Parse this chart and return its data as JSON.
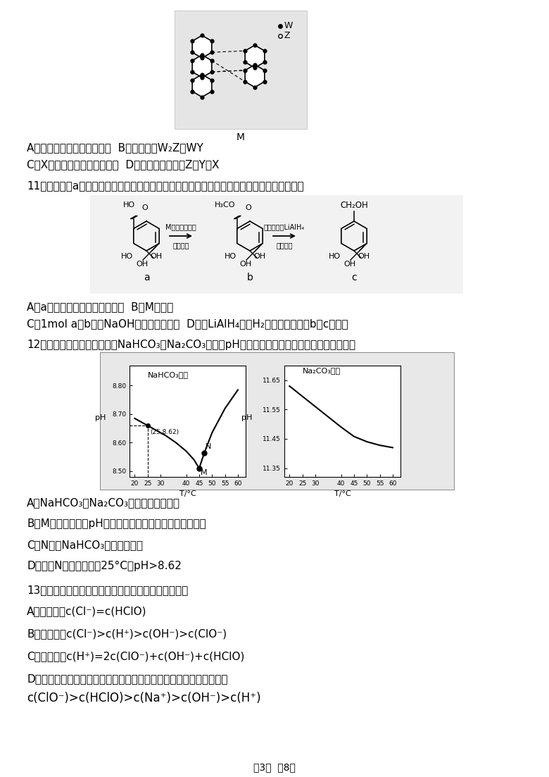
{
  "page_bg": "#ffffff",
  "footer": "第3页  共8页",
  "q10_A": "A．氢键是一种特殊的化学键  B．稳定性：W",
  "q10_A2": "Z＞WY",
  "q10_C": "C．X的氧化物的水化物是强碱  D．简单离子半径：Z＞Y＞X",
  "q11_title": "11．莽草酸（a）是抗病毒和抗癌药物中间体，其官能团修饰过程如图所示，下列说法正确的是",
  "q11_A": "A．a分子中所有碳原子可能共面  B．M为乙醇",
  "q11_C": "C．1mol a或b消耗NaOH的物质的量相等  D．将LiAlH",
  "q11_C2": "改为H",
  "q11_C3": "，也可以完成由b向c的转化",
  "q12_title": "12．实验测得等物质的量浓度NaHCO",
  "q12_title2": "和Na",
  "q12_title3": "CO",
  "q12_title4": "溶液的pH随温度变化如图所示，下列说法错误的是",
  "q12_A": "A．NaHCO",
  "q12_A2": "和Na",
  "q12_A3": "CO",
  "q12_A4": "水解均是吸热反应",
  "q12_B": "B．M点之前，升温pH减小，主要原因是升温促进水的电离",
  "q12_C": "C．N点时NaHCO",
  "q12_C2": "已经完全分解",
  "q12_D": "D．若将N点溶液恢复到25°C，pH>8.62",
  "q13_title": "13．氯水具有漂白和杀菌作用．下列浓度关系正确的是",
  "q13_A": "A．氯水中：c(Cl",
  "q13_A2": ")=c(HClO)",
  "q13_B": "B．氯水中：c(Cl",
  "q13_B2": ")>c(H",
  "q13_B3": ")>c(OH",
  "q13_B4": ")>c(ClO",
  "q13_B5": ")",
  "q13_C": "C．氯水中：c(H",
  "q13_C2": ")=2c(ClO",
  "q13_C3": ")+c(OH",
  "q13_C4": ")+c(HClO)",
  "q13_D1": "D．等体积等浓度的次氯酸钠溶液与次氯酸溶液混合后，溶液呈碱性：",
  "q13_D2": "c(ClO",
  "q13_D3": ")>c(HClO)>c(Na",
  "q13_D4": ")>c(OH",
  "q13_D5": ")>c(H",
  "q13_D6": ")",
  "graph1_title": "NaHCO₃溶液",
  "graph2_title": "Na₂CO₃溶液",
  "T1": [
    20,
    25,
    28,
    32,
    36,
    40,
    43,
    45,
    47,
    50,
    55,
    60
  ],
  "pH1": [
    8.685,
    8.66,
    8.645,
    8.625,
    8.6,
    8.57,
    8.54,
    8.51,
    8.565,
    8.635,
    8.72,
    8.785
  ],
  "T2": [
    20,
    25,
    30,
    35,
    40,
    45,
    50,
    55,
    60
  ],
  "pH2": [
    11.63,
    11.595,
    11.56,
    11.525,
    11.49,
    11.458,
    11.44,
    11.428,
    11.42
  ],
  "graph1_yticks": [
    8.5,
    8.6,
    8.7,
    8.8
  ],
  "graph2_yticks": [
    11.35,
    11.45,
    11.55,
    11.65
  ],
  "graph_xticks": [
    20,
    25,
    30,
    40,
    45,
    50,
    55,
    60
  ]
}
